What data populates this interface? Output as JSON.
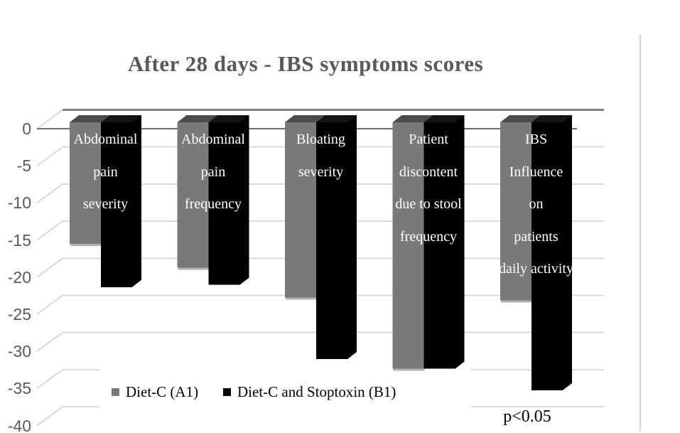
{
  "chart_data": {
    "type": "bar",
    "style": "3d-clustered-column",
    "title": "After 28 days - IBS symptoms scores",
    "categories": [
      "Abdominal pain severity",
      "Abdominal pain frequency",
      "Bloating severity",
      "Patient discontent due to stool frequency",
      "IBS Influence on patients daily activity"
    ],
    "category_label_lines": [
      [
        "Abdominal",
        "pain",
        "severity"
      ],
      [
        "Abdominal",
        "pain",
        "frequency"
      ],
      [
        "Bloating",
        "severity"
      ],
      [
        "Patient",
        "discontent",
        "due to stool",
        "frequency"
      ],
      [
        "IBS",
        "Influence",
        "on",
        "patients",
        "daily activity"
      ]
    ],
    "series": [
      {
        "name": "Diet-C (A1)",
        "color": "#7a7878",
        "values": [
          -16.4,
          -19.6,
          -23.6,
          -33.2,
          -24.0
        ]
      },
      {
        "name": "Diet-C and Stoptoxin (B1)",
        "color": "#000000",
        "values": [
          -22.2,
          -21.9,
          -31.9,
          -33.2,
          -36.1
        ]
      }
    ],
    "ylabel": "",
    "xlabel": "",
    "ylim": [
      -40,
      0
    ],
    "yticks": [
      0,
      -5,
      -10,
      -15,
      -20,
      -25,
      -30,
      -35,
      -40
    ],
    "grid": true,
    "legend_position": "bottom",
    "annotation": "p<0.05"
  },
  "colors": {
    "title": "#595959",
    "tick_label": "#595959",
    "gridline": "#d9d9d9",
    "zero_wall_line": "#828282",
    "zero_front_line": "#6e6e6e",
    "series_gray_front": "#7a7878",
    "series_gray_top": "#4e4b4b",
    "series_gray_bottom_edge": "#b3b0b0",
    "series_black_front": "#000000",
    "series_black_top": "#141414",
    "category_text": "#ffffff",
    "page_rule": "#d4d4d4"
  }
}
